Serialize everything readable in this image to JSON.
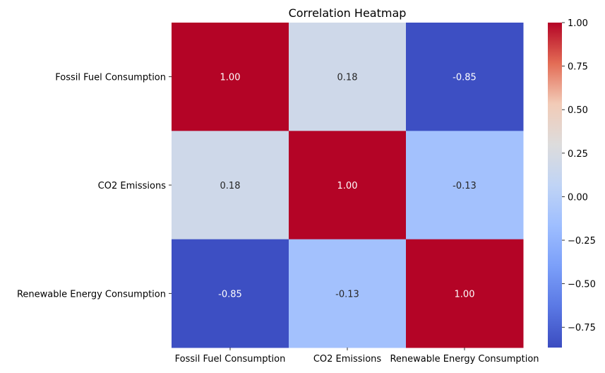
{
  "chart_data": {
    "type": "heatmap",
    "title": "Correlation Heatmap",
    "xlabel": "",
    "ylabel": "",
    "x_categories": [
      "Fossil Fuel Consumption",
      "CO2 Emissions",
      "Renewable Energy Consumption"
    ],
    "y_categories": [
      "Fossil Fuel Consumption",
      "CO2 Emissions",
      "Renewable Energy Consumption"
    ],
    "values": [
      [
        1.0,
        0.18,
        -0.85
      ],
      [
        0.18,
        1.0,
        -0.13
      ],
      [
        -0.85,
        -0.13,
        1.0
      ]
    ],
    "annotation_format": "0.00",
    "colormap": "coolwarm",
    "colorbar": {
      "vmin": -0.8667,
      "vmax": 1.0,
      "ticks": [
        1.0,
        0.75,
        0.5,
        0.25,
        0.0,
        -0.25,
        -0.5,
        -0.75
      ],
      "tick_labels": [
        "1.00",
        "0.75",
        "0.50",
        "0.25",
        "0.00",
        "−0.25",
        "−0.50",
        "−0.75"
      ]
    }
  }
}
